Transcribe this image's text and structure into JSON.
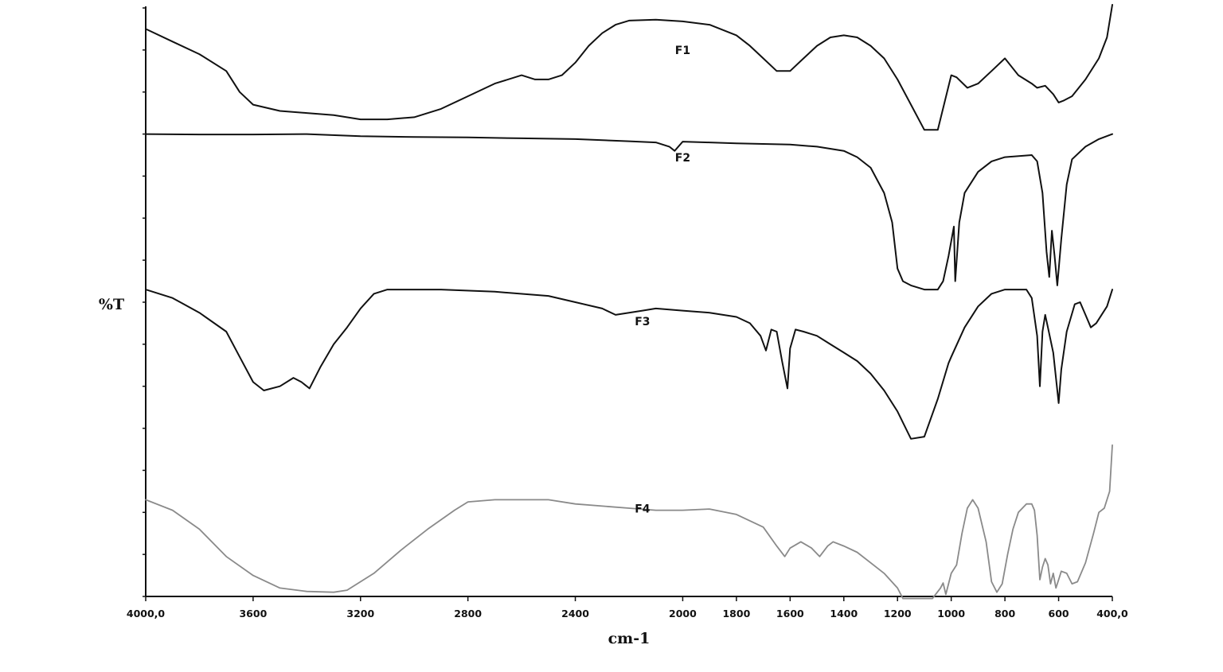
{
  "chart_data": {
    "type": "line",
    "title": "",
    "xlabel": "cm-1",
    "ylabel": "%T",
    "xlim": [
      4000,
      400
    ],
    "x_reversed": true,
    "x_ticks": [
      {
        "value": 4000,
        "label": "4000,0"
      },
      {
        "value": 3600,
        "label": "3600"
      },
      {
        "value": 3200,
        "label": "3200"
      },
      {
        "value": 2800,
        "label": "2800"
      },
      {
        "value": 2400,
        "label": "2400"
      },
      {
        "value": 2000,
        "label": "2000"
      },
      {
        "value": 1800,
        "label": "1800"
      },
      {
        "value": 1600,
        "label": "1600"
      },
      {
        "value": 1400,
        "label": "1400"
      },
      {
        "value": 1200,
        "label": "1200"
      },
      {
        "value": 1000,
        "label": "1000"
      },
      {
        "value": 800,
        "label": "800"
      },
      {
        "value": 600,
        "label": "600"
      },
      {
        "value": 400,
        "label": "400,0"
      }
    ],
    "ylim": [
      0,
      14
    ],
    "y_minor_ticks": 14,
    "y_tick_labels_shown": false,
    "grid": false,
    "legend": "inline labels",
    "series": [
      {
        "name": "F1",
        "color": "#111111",
        "label_at": [
          2000,
          12.9
        ],
        "points": [
          [
            4000,
            13.5
          ],
          [
            3900,
            13.2
          ],
          [
            3800,
            12.9
          ],
          [
            3700,
            12.5
          ],
          [
            3650,
            12.0
          ],
          [
            3600,
            11.7
          ],
          [
            3500,
            11.55
          ],
          [
            3400,
            11.5
          ],
          [
            3300,
            11.45
          ],
          [
            3200,
            11.35
          ],
          [
            3100,
            11.35
          ],
          [
            3000,
            11.4
          ],
          [
            2900,
            11.6
          ],
          [
            2800,
            11.9
          ],
          [
            2700,
            12.2
          ],
          [
            2600,
            12.4
          ],
          [
            2550,
            12.3
          ],
          [
            2500,
            12.3
          ],
          [
            2450,
            12.4
          ],
          [
            2400,
            12.7
          ],
          [
            2350,
            13.1
          ],
          [
            2300,
            13.4
          ],
          [
            2250,
            13.6
          ],
          [
            2200,
            13.7
          ],
          [
            2100,
            13.72
          ],
          [
            2000,
            13.68
          ],
          [
            1900,
            13.6
          ],
          [
            1800,
            13.35
          ],
          [
            1750,
            13.1
          ],
          [
            1700,
            12.8
          ],
          [
            1650,
            12.5
          ],
          [
            1600,
            12.5
          ],
          [
            1550,
            12.8
          ],
          [
            1500,
            13.1
          ],
          [
            1450,
            13.3
          ],
          [
            1400,
            13.35
          ],
          [
            1350,
            13.3
          ],
          [
            1300,
            13.1
          ],
          [
            1250,
            12.8
          ],
          [
            1200,
            12.3
          ],
          [
            1150,
            11.7
          ],
          [
            1100,
            11.1
          ],
          [
            1050,
            11.1
          ],
          [
            1000,
            12.4
          ],
          [
            980,
            12.35
          ],
          [
            940,
            12.1
          ],
          [
            900,
            12.2
          ],
          [
            850,
            12.5
          ],
          [
            800,
            12.8
          ],
          [
            750,
            12.4
          ],
          [
            700,
            12.2
          ],
          [
            680,
            12.1
          ],
          [
            650,
            12.15
          ],
          [
            620,
            11.95
          ],
          [
            600,
            11.75
          ],
          [
            580,
            11.8
          ],
          [
            550,
            11.9
          ],
          [
            500,
            12.3
          ],
          [
            450,
            12.8
          ],
          [
            420,
            13.3
          ],
          [
            400,
            14.8
          ]
        ]
      },
      {
        "name": "F2",
        "color": "#111111",
        "label_at": [
          2000,
          10.35
        ],
        "points": [
          [
            4000,
            11.0
          ],
          [
            3800,
            10.99
          ],
          [
            3600,
            10.99
          ],
          [
            3400,
            11.0
          ],
          [
            3200,
            10.95
          ],
          [
            3000,
            10.93
          ],
          [
            2800,
            10.92
          ],
          [
            2600,
            10.9
          ],
          [
            2400,
            10.88
          ],
          [
            2200,
            10.83
          ],
          [
            2100,
            10.8
          ],
          [
            2050,
            10.7
          ],
          [
            2030,
            10.6
          ],
          [
            2000,
            10.82
          ],
          [
            1900,
            10.8
          ],
          [
            1800,
            10.78
          ],
          [
            1600,
            10.75
          ],
          [
            1500,
            10.7
          ],
          [
            1400,
            10.6
          ],
          [
            1350,
            10.45
          ],
          [
            1300,
            10.2
          ],
          [
            1250,
            9.6
          ],
          [
            1220,
            8.9
          ],
          [
            1200,
            7.8
          ],
          [
            1180,
            7.5
          ],
          [
            1150,
            7.4
          ],
          [
            1100,
            7.3
          ],
          [
            1050,
            7.3
          ],
          [
            1030,
            7.5
          ],
          [
            1010,
            8.1
          ],
          [
            990,
            8.8
          ],
          [
            985,
            7.5
          ],
          [
            970,
            8.9
          ],
          [
            950,
            9.6
          ],
          [
            900,
            10.1
          ],
          [
            850,
            10.35
          ],
          [
            800,
            10.45
          ],
          [
            700,
            10.5
          ],
          [
            680,
            10.35
          ],
          [
            660,
            9.6
          ],
          [
            645,
            8.2
          ],
          [
            635,
            7.6
          ],
          [
            625,
            8.7
          ],
          [
            615,
            8.1
          ],
          [
            605,
            7.4
          ],
          [
            590,
            8.5
          ],
          [
            570,
            9.8
          ],
          [
            550,
            10.4
          ],
          [
            500,
            10.7
          ],
          [
            450,
            10.88
          ],
          [
            400,
            11.0
          ]
        ]
      },
      {
        "name": "F3",
        "color": "#111111",
        "label_at": [
          2150,
          6.45
        ],
        "points": [
          [
            4000,
            7.3
          ],
          [
            3900,
            7.1
          ],
          [
            3800,
            6.75
          ],
          [
            3700,
            6.3
          ],
          [
            3650,
            5.7
          ],
          [
            3600,
            5.1
          ],
          [
            3560,
            4.9
          ],
          [
            3500,
            5.0
          ],
          [
            3450,
            5.2
          ],
          [
            3420,
            5.1
          ],
          [
            3390,
            4.95
          ],
          [
            3350,
            5.45
          ],
          [
            3300,
            6.0
          ],
          [
            3250,
            6.4
          ],
          [
            3200,
            6.85
          ],
          [
            3150,
            7.2
          ],
          [
            3100,
            7.3
          ],
          [
            2900,
            7.3
          ],
          [
            2700,
            7.25
          ],
          [
            2500,
            7.15
          ],
          [
            2400,
            7.0
          ],
          [
            2300,
            6.85
          ],
          [
            2250,
            6.7
          ],
          [
            2200,
            6.75
          ],
          [
            2150,
            6.8
          ],
          [
            2100,
            6.85
          ],
          [
            2000,
            6.8
          ],
          [
            1900,
            6.75
          ],
          [
            1800,
            6.65
          ],
          [
            1750,
            6.5
          ],
          [
            1710,
            6.2
          ],
          [
            1690,
            5.85
          ],
          [
            1670,
            6.35
          ],
          [
            1650,
            6.3
          ],
          [
            1630,
            5.6
          ],
          [
            1610,
            4.95
          ],
          [
            1600,
            5.9
          ],
          [
            1580,
            6.35
          ],
          [
            1550,
            6.3
          ],
          [
            1500,
            6.2
          ],
          [
            1450,
            6.0
          ],
          [
            1400,
            5.8
          ],
          [
            1350,
            5.6
          ],
          [
            1300,
            5.3
          ],
          [
            1250,
            4.9
          ],
          [
            1200,
            4.4
          ],
          [
            1150,
            3.75
          ],
          [
            1100,
            3.8
          ],
          [
            1050,
            4.7
          ],
          [
            1010,
            5.55
          ],
          [
            1000,
            5.7
          ],
          [
            950,
            6.4
          ],
          [
            900,
            6.9
          ],
          [
            850,
            7.2
          ],
          [
            800,
            7.3
          ],
          [
            720,
            7.3
          ],
          [
            700,
            7.1
          ],
          [
            680,
            6.2
          ],
          [
            670,
            5.0
          ],
          [
            660,
            6.3
          ],
          [
            650,
            6.7
          ],
          [
            640,
            6.4
          ],
          [
            620,
            5.8
          ],
          [
            610,
            5.2
          ],
          [
            600,
            4.6
          ],
          [
            590,
            5.4
          ],
          [
            570,
            6.3
          ],
          [
            540,
            6.95
          ],
          [
            520,
            7.0
          ],
          [
            500,
            6.7
          ],
          [
            480,
            6.4
          ],
          [
            460,
            6.5
          ],
          [
            440,
            6.7
          ],
          [
            420,
            6.9
          ],
          [
            400,
            7.3
          ]
        ]
      },
      {
        "name": "F4",
        "color": "#8a8a8a",
        "label_at": [
          2150,
          2.0
        ],
        "points": [
          [
            4000,
            2.3
          ],
          [
            3900,
            2.05
          ],
          [
            3800,
            1.6
          ],
          [
            3700,
            0.95
          ],
          [
            3600,
            0.5
          ],
          [
            3500,
            0.2
          ],
          [
            3400,
            0.12
          ],
          [
            3300,
            0.1
          ],
          [
            3250,
            0.15
          ],
          [
            3150,
            0.55
          ],
          [
            3050,
            1.1
          ],
          [
            2950,
            1.6
          ],
          [
            2850,
            2.05
          ],
          [
            2800,
            2.25
          ],
          [
            2700,
            2.3
          ],
          [
            2500,
            2.3
          ],
          [
            2400,
            2.2
          ],
          [
            2200,
            2.1
          ],
          [
            2100,
            2.05
          ],
          [
            2000,
            2.05
          ],
          [
            1900,
            2.08
          ],
          [
            1800,
            1.95
          ],
          [
            1700,
            1.65
          ],
          [
            1650,
            1.2
          ],
          [
            1620,
            0.95
          ],
          [
            1600,
            1.15
          ],
          [
            1560,
            1.3
          ],
          [
            1520,
            1.15
          ],
          [
            1490,
            0.95
          ],
          [
            1460,
            1.2
          ],
          [
            1440,
            1.3
          ],
          [
            1400,
            1.2
          ],
          [
            1350,
            1.05
          ],
          [
            1300,
            0.8
          ],
          [
            1250,
            0.55
          ],
          [
            1200,
            0.2
          ],
          [
            1180,
            -0.05
          ],
          [
            1070,
            -0.05
          ],
          [
            1040,
            0.2
          ],
          [
            1030,
            0.32
          ],
          [
            1020,
            0.05
          ],
          [
            1000,
            0.55
          ],
          [
            980,
            0.75
          ],
          [
            960,
            1.5
          ],
          [
            940,
            2.1
          ],
          [
            920,
            2.3
          ],
          [
            900,
            2.1
          ],
          [
            870,
            1.3
          ],
          [
            850,
            0.35
          ],
          [
            830,
            0.1
          ],
          [
            810,
            0.3
          ],
          [
            790,
            1.0
          ],
          [
            770,
            1.6
          ],
          [
            750,
            2.0
          ],
          [
            720,
            2.2
          ],
          [
            700,
            2.2
          ],
          [
            690,
            2.05
          ],
          [
            680,
            1.45
          ],
          [
            670,
            0.4
          ],
          [
            660,
            0.7
          ],
          [
            650,
            0.9
          ],
          [
            640,
            0.75
          ],
          [
            630,
            0.3
          ],
          [
            620,
            0.55
          ],
          [
            610,
            0.2
          ],
          [
            600,
            0.4
          ],
          [
            590,
            0.6
          ],
          [
            570,
            0.55
          ],
          [
            550,
            0.3
          ],
          [
            530,
            0.35
          ],
          [
            500,
            0.8
          ],
          [
            470,
            1.5
          ],
          [
            450,
            2.0
          ],
          [
            430,
            2.1
          ],
          [
            410,
            2.5
          ],
          [
            400,
            3.6
          ]
        ]
      }
    ]
  }
}
